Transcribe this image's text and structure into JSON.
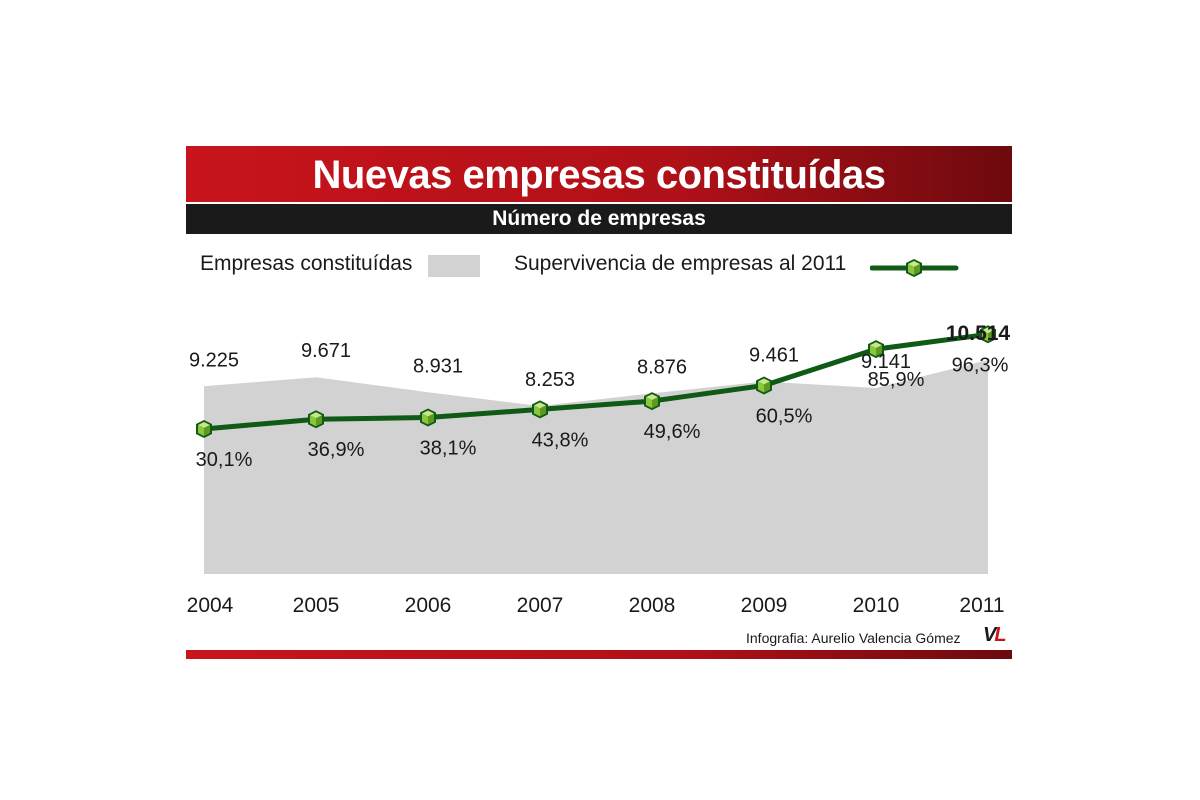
{
  "chart_data": {
    "type": "area",
    "title": "Nuevas empresas constituídas",
    "subtitle": "Número de empresas",
    "categories": [
      "2004",
      "2005",
      "2006",
      "2007",
      "2008",
      "2009",
      "2010",
      "2011"
    ],
    "series": [
      {
        "name": "Empresas constituídas",
        "type": "area",
        "color": "#d2d2d2",
        "values": [
          9225,
          9671,
          8931,
          8253,
          8876,
          9461,
          9141,
          10514
        ],
        "labels": [
          "9.225",
          "9.671",
          "8.931",
          "8.253",
          "8.876",
          "9.461",
          "9.141",
          "10.514"
        ]
      },
      {
        "name": "Supervivencia de empresas al 2011",
        "type": "line",
        "color": "#0f5a14",
        "marker_color": "#8cc63f",
        "values": [
          30.1,
          36.9,
          38.1,
          43.8,
          49.6,
          60.5,
          85.9,
          96.3
        ],
        "labels": [
          "30,1%",
          "36,9%",
          "38,1%",
          "43,8%",
          "49,6%",
          "60,5%",
          "85,9%",
          "96,3%"
        ]
      }
    ],
    "legend_position": "top",
    "grid": false
  },
  "credit": "Infografia: Aurelio Valencia Gómez",
  "logo": {
    "v": "V",
    "l": "L"
  },
  "colors": {
    "title_red": "#c8141c",
    "dark_bar": "#1a1a1a",
    "area_gray": "#d2d2d2",
    "line_green": "#0f5a14"
  }
}
